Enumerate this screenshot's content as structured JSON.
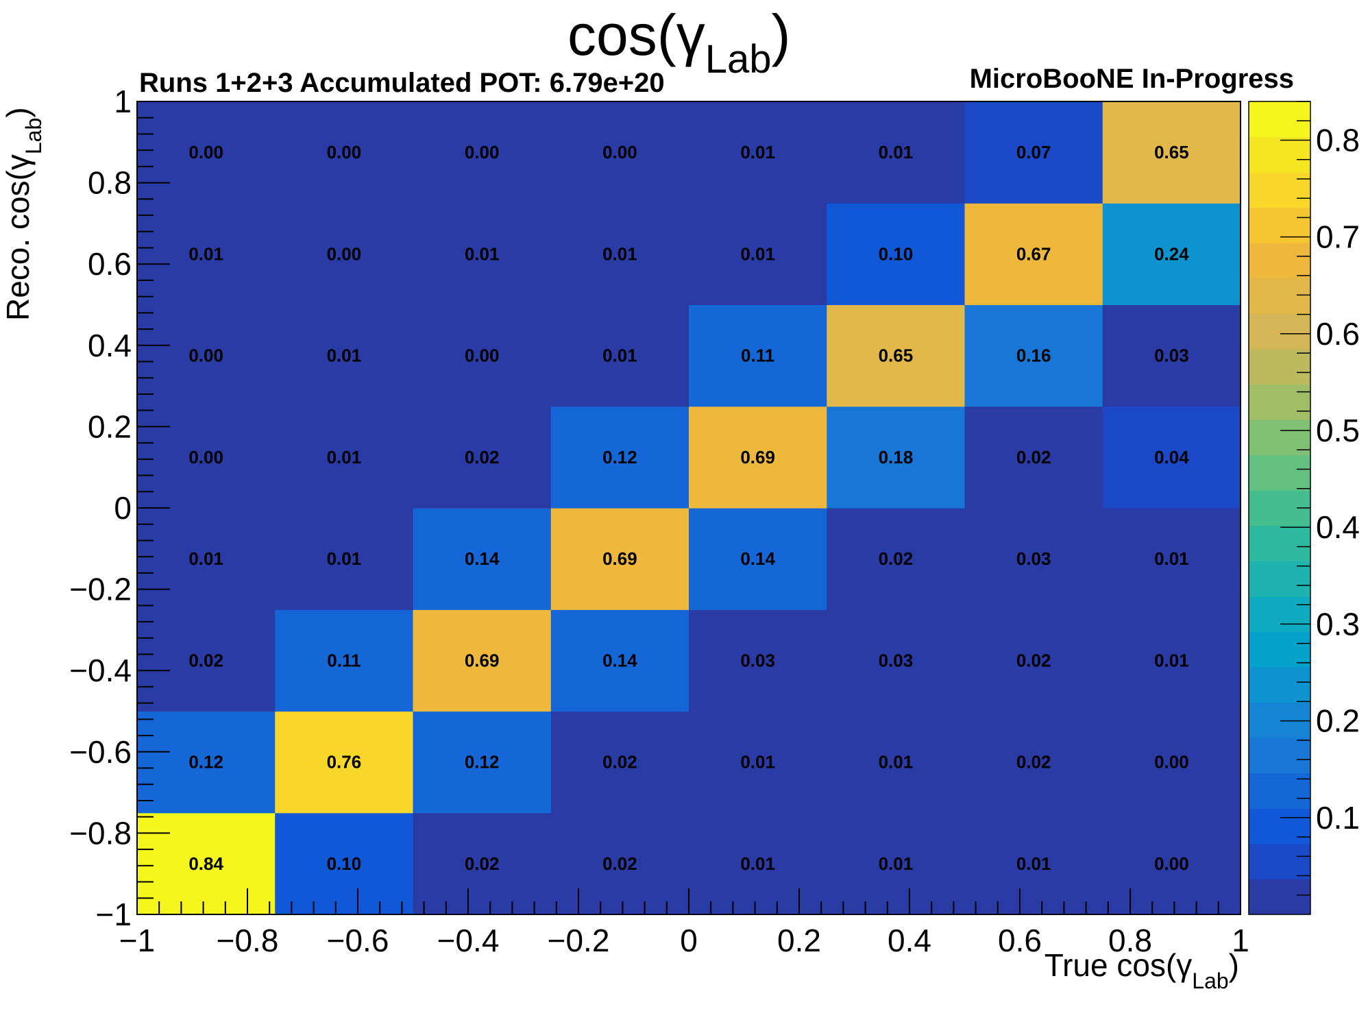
{
  "header": {
    "title_main": "cos(γ",
    "title_sub": "Lab",
    "title_close": ")",
    "left_text": "Runs 1+2+3 Accumulated POT: 6.79e+20",
    "right_text": "MicroBooNE In-Progress"
  },
  "axes": {
    "x_label_main": "True cos(γ",
    "x_label_sub": "Lab",
    "x_label_close": ")",
    "y_label_main": "Reco. cos(γ",
    "y_label_sub": "Lab",
    "y_label_close": ")"
  },
  "chart_data": {
    "type": "heatmap",
    "x_bin_edges": [
      -1,
      -0.75,
      -0.5,
      -0.25,
      0,
      0.25,
      0.5,
      0.75,
      1
    ],
    "y_bin_edges": [
      -1,
      -0.75,
      -0.5,
      -0.25,
      0,
      0.25,
      0.5,
      0.75,
      1
    ],
    "xlim": [
      -1,
      1
    ],
    "ylim": [
      -1,
      1
    ],
    "zlim": [
      0.0,
      0.84
    ],
    "x_ticks": [
      -1,
      -0.8,
      -0.6,
      -0.4,
      -0.2,
      0,
      0.2,
      0.4,
      0.6,
      0.8,
      1
    ],
    "x_tick_labels": [
      "−1",
      "−0.8",
      "−0.6",
      "−0.4",
      "−0.2",
      "0",
      "0.2",
      "0.4",
      "0.6",
      "0.8",
      "1"
    ],
    "y_ticks": [
      -1,
      -0.8,
      -0.6,
      -0.4,
      -0.2,
      0,
      0.2,
      0.4,
      0.6,
      0.8,
      1
    ],
    "y_tick_labels": [
      "−1",
      "−0.8",
      "−0.6",
      "−0.4",
      "−0.2",
      "0",
      "0.2",
      "0.4",
      "0.6",
      "0.8",
      "1"
    ],
    "z_ticks": [
      0.1,
      0.2,
      0.3,
      0.4,
      0.5,
      0.6,
      0.7,
      0.8
    ],
    "z_tick_labels": [
      "0.1",
      "0.2",
      "0.3",
      "0.4",
      "0.5",
      "0.6",
      "0.7",
      "0.8"
    ],
    "rows_bottom_to_top": [
      [
        "0.84",
        "0.10",
        "0.02",
        "0.02",
        "0.01",
        "0.01",
        "0.01",
        "0.00"
      ],
      [
        "0.12",
        "0.76",
        "0.12",
        "0.02",
        "0.01",
        "0.01",
        "0.02",
        "0.00"
      ],
      [
        "0.02",
        "0.11",
        "0.69",
        "0.14",
        "0.03",
        "0.03",
        "0.02",
        "0.01"
      ],
      [
        "0.01",
        "0.01",
        "0.14",
        "0.69",
        "0.14",
        "0.02",
        "0.03",
        "0.01"
      ],
      [
        "0.00",
        "0.01",
        "0.02",
        "0.12",
        "0.69",
        "0.18",
        "0.02",
        "0.04"
      ],
      [
        "0.00",
        "0.01",
        "0.00",
        "0.01",
        "0.11",
        "0.65",
        "0.16",
        "0.03"
      ],
      [
        "0.01",
        "0.00",
        "0.01",
        "0.01",
        "0.01",
        "0.10",
        "0.67",
        "0.24"
      ],
      [
        "0.00",
        "0.00",
        "0.00",
        "0.00",
        "0.01",
        "0.01",
        "0.07",
        "0.65"
      ]
    ],
    "palette_colors_low_to_high": [
      "#2a3ba6",
      "#1a48c6",
      "#1058d8",
      "#1567d8",
      "#1876d6",
      "#1684d4",
      "#0d94d0",
      "#05a2cc",
      "#10aac1",
      "#1eb3b0",
      "#2cb99f",
      "#44bd90",
      "#62c080",
      "#80c072",
      "#a0be66",
      "#bcb95e",
      "#d4b656",
      "#e2b84a",
      "#eeb83c",
      "#f6c632",
      "#f8d62a",
      "#f6e622",
      "#f5f61c"
    ]
  }
}
